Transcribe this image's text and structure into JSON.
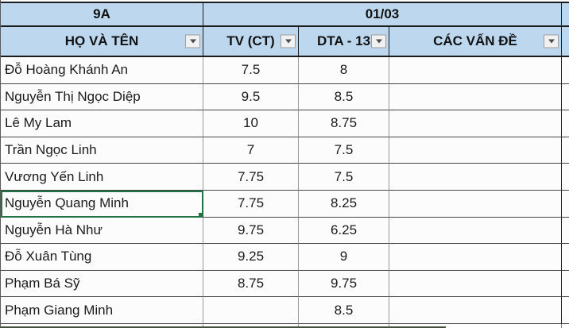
{
  "table": {
    "class_label": "9A",
    "date_label": "01/03",
    "columns": [
      {
        "label": "HỌ VÀ TÊN"
      },
      {
        "label": "TV  (CT)"
      },
      {
        "label": "DTA - 13"
      },
      {
        "label": "CÁC VẤN ĐỀ"
      }
    ],
    "icons": {
      "filter": "filter-dropdown-icon"
    },
    "colors": {
      "header_bg": "#BDD7EE",
      "selection_border": "#217346",
      "grid_vertical": "#9b9b9b",
      "grid_horizontal": "#474747",
      "outer_border": "#1c1c1c"
    },
    "selected_row_index": 5,
    "rows": [
      {
        "name": "Đỗ Hoàng Khánh An",
        "tv": "7.5",
        "dta": "8",
        "issues": ""
      },
      {
        "name": "Nguyễn Thị Ngọc Diệp",
        "tv": "9.5",
        "dta": "8.5",
        "issues": ""
      },
      {
        "name": "Lê My Lam",
        "tv": "10",
        "dta": "8.75",
        "issues": ""
      },
      {
        "name": "Trần Ngọc Linh",
        "tv": "7",
        "dta": "7.5",
        "issues": ""
      },
      {
        "name": "Vương Yến Linh",
        "tv": "7.75",
        "dta": "7.5",
        "issues": ""
      },
      {
        "name": "Nguyễn Quang Minh",
        "tv": "7.75",
        "dta": "8.25",
        "issues": "",
        "selected": true
      },
      {
        "name": "Nguyễn Hà Như",
        "tv": "9.75",
        "dta": "6.25",
        "issues": ""
      },
      {
        "name": "Đỗ Xuân Tùng",
        "tv": "9.25",
        "dta": "9",
        "issues": ""
      },
      {
        "name": "Phạm Bá Sỹ",
        "tv": "8.75",
        "dta": "9.75",
        "issues": ""
      },
      {
        "name": "Phạm Giang Minh",
        "tv": "",
        "dta": "8.5",
        "issues": ""
      }
    ]
  }
}
